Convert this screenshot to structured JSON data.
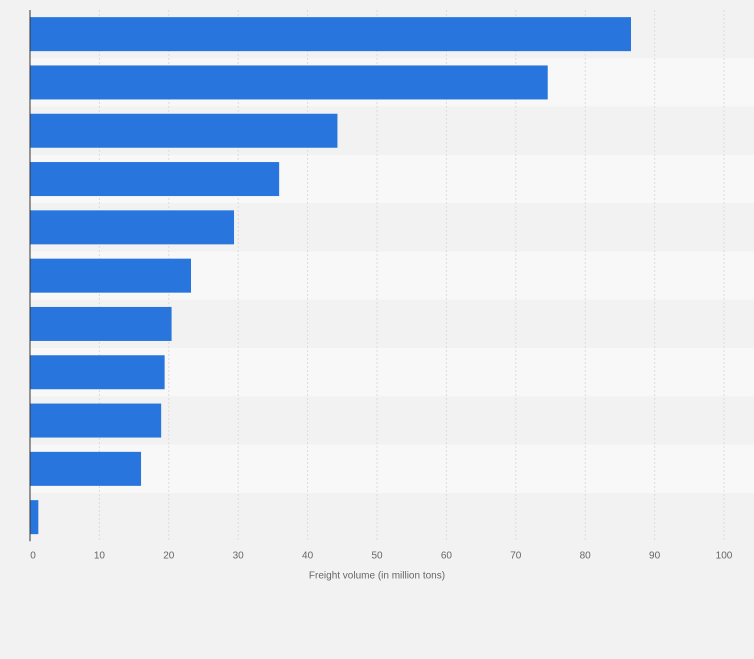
{
  "chart_data": {
    "type": "bar",
    "orientation": "horizontal",
    "title": "",
    "xlabel": "Freight volume (in million tons)",
    "ylabel": "",
    "xlim": [
      0,
      100
    ],
    "x_ticks": [
      0,
      10,
      20,
      30,
      40,
      50,
      60,
      70,
      80,
      90,
      100
    ],
    "categories": [
      "",
      "",
      "",
      "",
      "",
      "",
      "",
      "",
      "",
      "",
      ""
    ],
    "values": [
      86.6,
      74.6,
      44.3,
      35.9,
      29.4,
      23.2,
      20.4,
      19.4,
      18.9,
      16.0,
      1.2
    ],
    "grid": true,
    "legend": "none"
  },
  "colors": {
    "bar": "#2876dd",
    "page_background": "#f2f2f2",
    "band_light": "#f8f8f8",
    "band_dark": "#f2f2f2",
    "gridline": "#dcdcdc",
    "axis_line": "#333333",
    "tick_text": "#666666"
  }
}
